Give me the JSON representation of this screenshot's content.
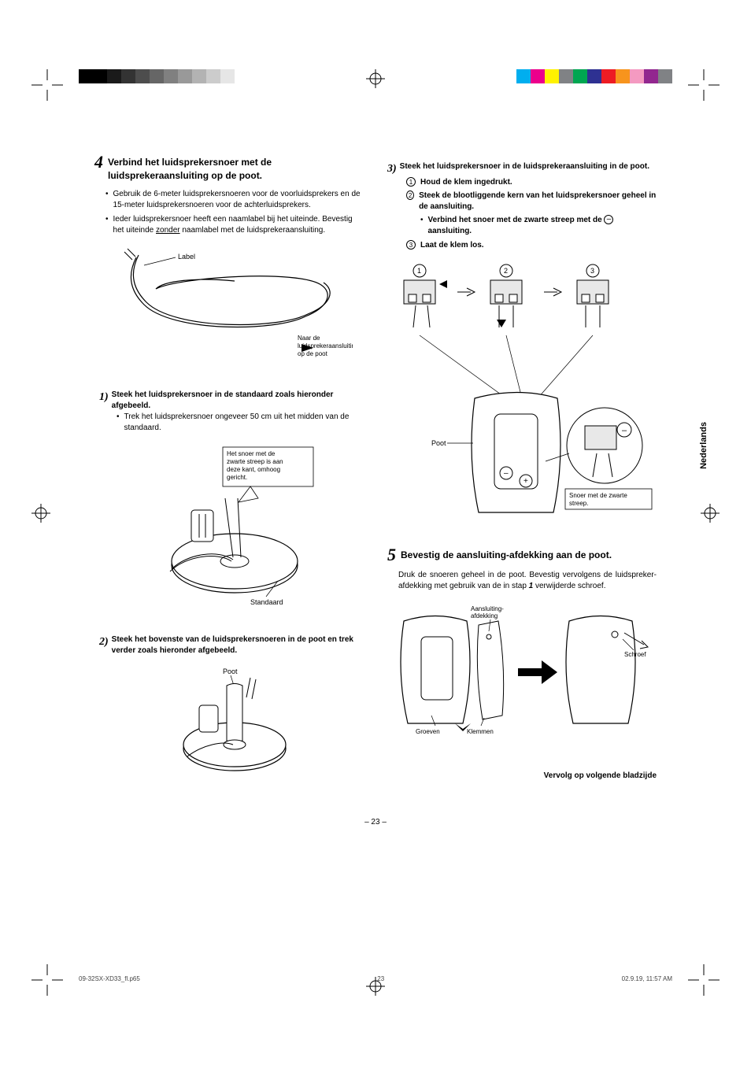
{
  "registration": {
    "grayscale_swatches": [
      "#000000",
      "#000000",
      "#1a1a1a",
      "#333333",
      "#4d4d4d",
      "#666666",
      "#808080",
      "#999999",
      "#b3b3b3",
      "#cccccc",
      "#e6e6e6"
    ],
    "color_swatches": [
      "#00aeef",
      "#ec008c",
      "#fff200",
      "#808285",
      "#00a651",
      "#2e3192",
      "#ed1c24",
      "#f7941d",
      "#f49ac1",
      "#92278f",
      "#808285"
    ]
  },
  "left_col": {
    "step4": {
      "number": "4",
      "title": "Verbind het luidsprekersnoer met de luidsprekeraansluiting op de poot.",
      "bullets": [
        "Gebruik de 6-meter luidsprekersnoeren voor de voorluidsprekers en de 15-meter luidsprekersnoeren voor de achterluidsprekers.",
        "Ieder luidsprekersnoer heeft een naamlabel bij het uiteinde. Bevestig het uiteinde zonder naamlabel met de luidsprekeraansluiting."
      ],
      "bullet2_underlined": "zonder",
      "fig1": {
        "label_left": "Label",
        "label_right": "Naar de luidsprekeraansluiting op de poot"
      },
      "sub1": {
        "num": "1)",
        "title": "Steek het luidsprekersnoer in de standaard zoals hieronder afgebeeld.",
        "bullet": "Trek het luidsprekersnoer ongeveer 50 cm uit het midden van de standaard.",
        "fig": {
          "callout": "Het snoer met de zwarte streep is aan deze kant, omhoog gericht.",
          "base_label": "Standaard"
        }
      },
      "sub2": {
        "num": "2)",
        "title": "Steek het bovenste van de luidsprekersnoeren in de poot en trek verder zoals hieronder afgebeeld.",
        "fig": {
          "top_label": "Poot"
        }
      }
    }
  },
  "right_col": {
    "sub3": {
      "num": "3)",
      "title": "Steek het luidsprekersnoer in de luidsprekeraansluiting in de poot.",
      "items": [
        {
          "n": "1",
          "t": "Houd de klem ingedrukt."
        },
        {
          "n": "2",
          "t": "Steek de blootliggende kern van het luidsprekersnoer geheel in de aansluiting."
        },
        {
          "n": "3",
          "t": "Laat de klem los."
        }
      ],
      "connect_note": "Verbind het snoer met de zwarte streep met de",
      "connect_end": "aansluiting.",
      "fig": {
        "steps": [
          "1",
          "2",
          "3"
        ],
        "poot_label": "Poot",
        "cable_label": "Snoer met de zwarte streep."
      }
    },
    "step5": {
      "number": "5",
      "title": "Bevestig de aansluiting-afdekking aan de poot.",
      "body_pre": "Druk de snoeren geheel in de poot. Bevestig vervolgens de luidspreker-afdekking met gebruik van de in stap ",
      "body_step": "1",
      "body_post": " verwijderde schroef.",
      "fig": {
        "labels": {
          "cover": "Aansluiting-afdekking",
          "grooves": "Groeven",
          "clips": "Klemmen",
          "screw": "Schroef"
        }
      }
    },
    "continue": "Vervolg op volgende bladzijde"
  },
  "lang_tab": "Nederlands",
  "page_number": "– 23 –",
  "footer": {
    "file": "09-32SX-XD33_fl.p65",
    "page": "23",
    "date": "02.9.19, 11:57 AM"
  }
}
